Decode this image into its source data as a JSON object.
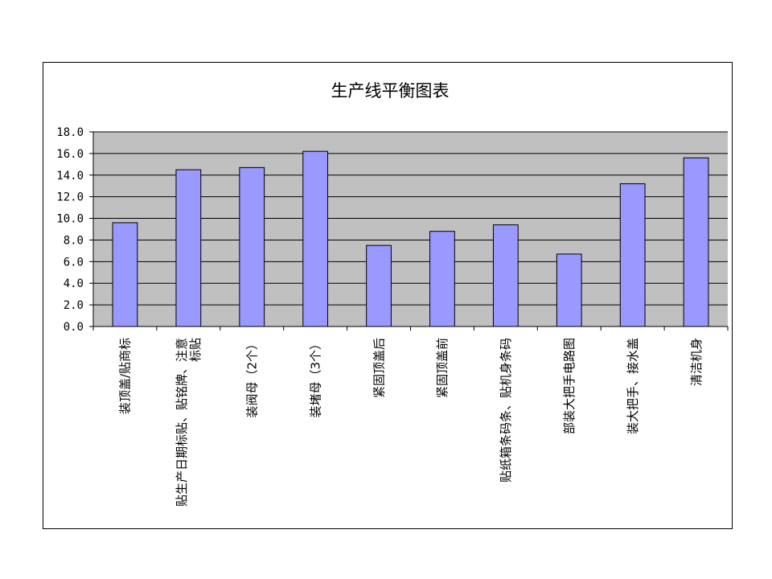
{
  "chart_data": {
    "type": "bar",
    "title": "生产线平衡图表",
    "xlabel": "",
    "ylabel": "",
    "categories": [
      "装顶盖/贴商标",
      "贴生产日期标贴、贴铭牌、注意标贴",
      "装阀母（2个）",
      "装堵母（3个）",
      "紧固顶盖后",
      "紧固顶盖前",
      "贴纸箱条码条、贴机身条码",
      "部装大把手电路图",
      "装大把手、接水盖",
      "清洁机身"
    ],
    "values": [
      9.6,
      14.5,
      14.7,
      16.2,
      7.5,
      8.8,
      9.4,
      6.7,
      13.2,
      15.6
    ],
    "ylim": [
      0,
      18
    ],
    "yticks": [
      "0.0",
      "2.0",
      "4.0",
      "6.0",
      "8.0",
      "10.0",
      "12.0",
      "14.0",
      "16.0",
      "18.0"
    ],
    "grid": true,
    "legend": "none",
    "colors": {
      "bar": "#9999ff",
      "plot_bg": "#c0c0c0",
      "grid": "#000000"
    }
  }
}
